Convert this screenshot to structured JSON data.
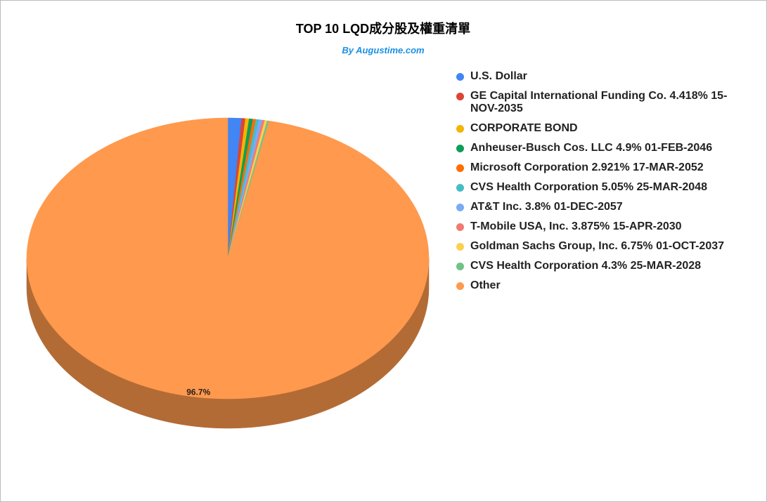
{
  "chart_data": {
    "type": "pie3d",
    "title": "TOP 10 LQD成分股及權重清單",
    "subtitle": "By Augustime.com",
    "categories": [
      "U.S. Dollar",
      "GE Capital International Funding Co. 4.418% 15-NOV-2035",
      "CORPORATE BOND",
      "Anheuser-Busch Cos. LLC 4.9% 01-FEB-2046",
      "Microsoft Corporation 2.921% 17-MAR-2052",
      "CVS Health Corporation 5.05% 25-MAR-2048",
      "AT&T Inc. 3.8% 01-DEC-2057",
      "T-Mobile USA, Inc. 3.875% 15-APR-2030",
      "Goldman Sachs Group, Inc. 6.75% 01-OCT-2037",
      "CVS Health Corporation 4.3% 25-MAR-2028",
      "Other"
    ],
    "values": [
      1.1,
      0.3,
      0.3,
      0.3,
      0.25,
      0.25,
      0.25,
      0.2,
      0.2,
      0.15,
      96.7
    ],
    "value_labels": [
      null,
      null,
      null,
      null,
      null,
      null,
      null,
      null,
      null,
      null,
      "96.7%"
    ],
    "colors": [
      "#4285f4",
      "#db4437",
      "#f4b400",
      "#0f9d58",
      "#ff6d01",
      "#46bdc6",
      "#7baaf7",
      "#f07b72",
      "#fcd04f",
      "#71c287",
      "#ff994d"
    ]
  }
}
